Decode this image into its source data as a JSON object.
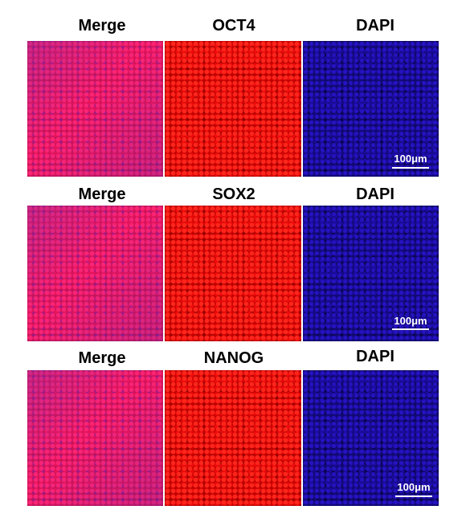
{
  "rows": [
    {
      "labels": [
        "Merge",
        "OCT4",
        "DAPI"
      ],
      "scale_bar": "100μm"
    },
    {
      "labels": [
        "Merge",
        "SOX2",
        "DAPI"
      ],
      "scale_bar": "100μm"
    },
    {
      "labels": [
        "Merge",
        "NANOG",
        "DAPI"
      ],
      "scale_bar": "100μm"
    }
  ],
  "colors": {
    "merge": "#c41456",
    "marker": "#c00000",
    "dapi": "#100a70"
  }
}
